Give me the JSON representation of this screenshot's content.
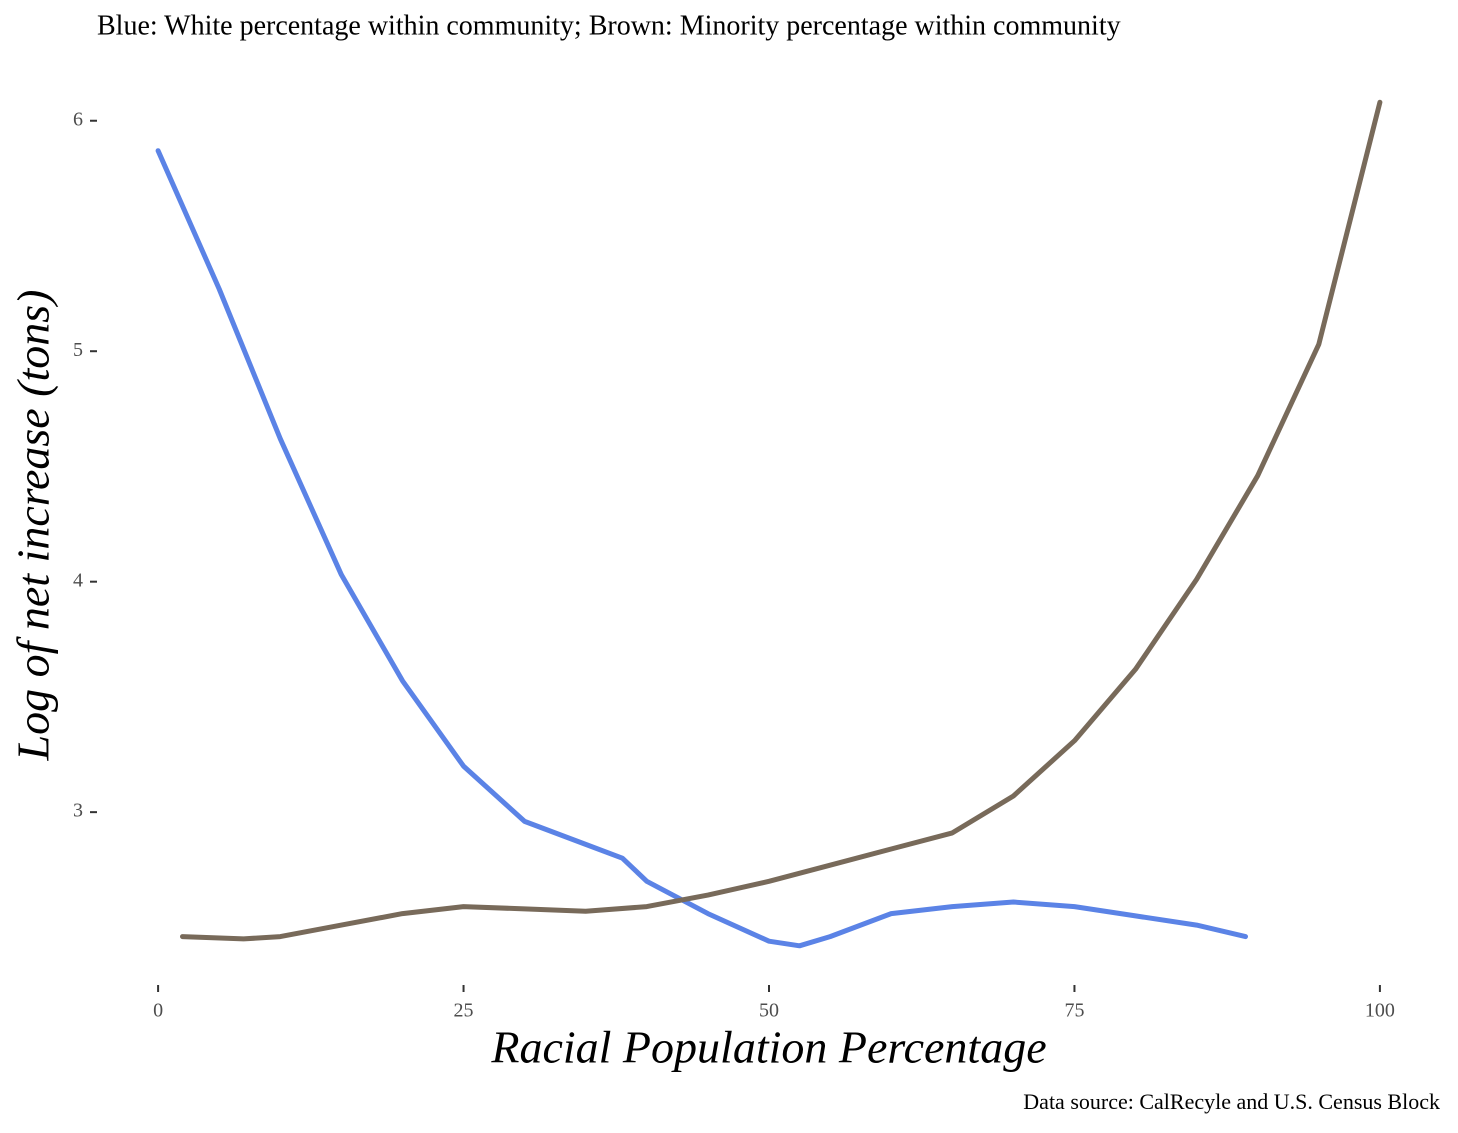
{
  "chart_data": {
    "type": "line",
    "title": "Blue: White percentage within community; Brown: Minority percentage within community",
    "x_label": "Racial Population Percentage",
    "y_label": "Log of net increase (tons)",
    "caption": "Data source: CalRecyle and U.S. Census Block",
    "xlim": [
      -5,
      105
    ],
    "xticks": [
      0,
      25,
      50,
      75,
      100
    ],
    "ylim": [
      2.25,
      6.09
    ],
    "yticks": [
      3,
      4,
      5,
      6
    ],
    "grid": false,
    "series": [
      {
        "color": "#5b83e6",
        "x": [
          0,
          5,
          10,
          15,
          20,
          25,
          30,
          35,
          38,
          40,
          45,
          50,
          52.5,
          55,
          60,
          65,
          70,
          75,
          80,
          85,
          89
        ],
        "values": [
          5.87,
          5.27,
          4.62,
          4.03,
          3.57,
          3.2,
          2.96,
          2.86,
          2.8,
          2.7,
          2.56,
          2.44,
          2.42,
          2.46,
          2.56,
          2.59,
          2.61,
          2.59,
          2.55,
          2.51,
          2.46
        ]
      },
      {
        "color": "#786a5a",
        "x": [
          2,
          7,
          10,
          15,
          20,
          25,
          30,
          35,
          40,
          45,
          50,
          55,
          60,
          65,
          70,
          75,
          80,
          85,
          90,
          95,
          100
        ],
        "values": [
          2.46,
          2.45,
          2.46,
          2.51,
          2.56,
          2.59,
          2.58,
          2.57,
          2.59,
          2.64,
          2.7,
          2.77,
          2.84,
          2.91,
          3.07,
          3.31,
          3.62,
          4.01,
          4.46,
          5.03,
          6.08
        ]
      }
    ]
  }
}
